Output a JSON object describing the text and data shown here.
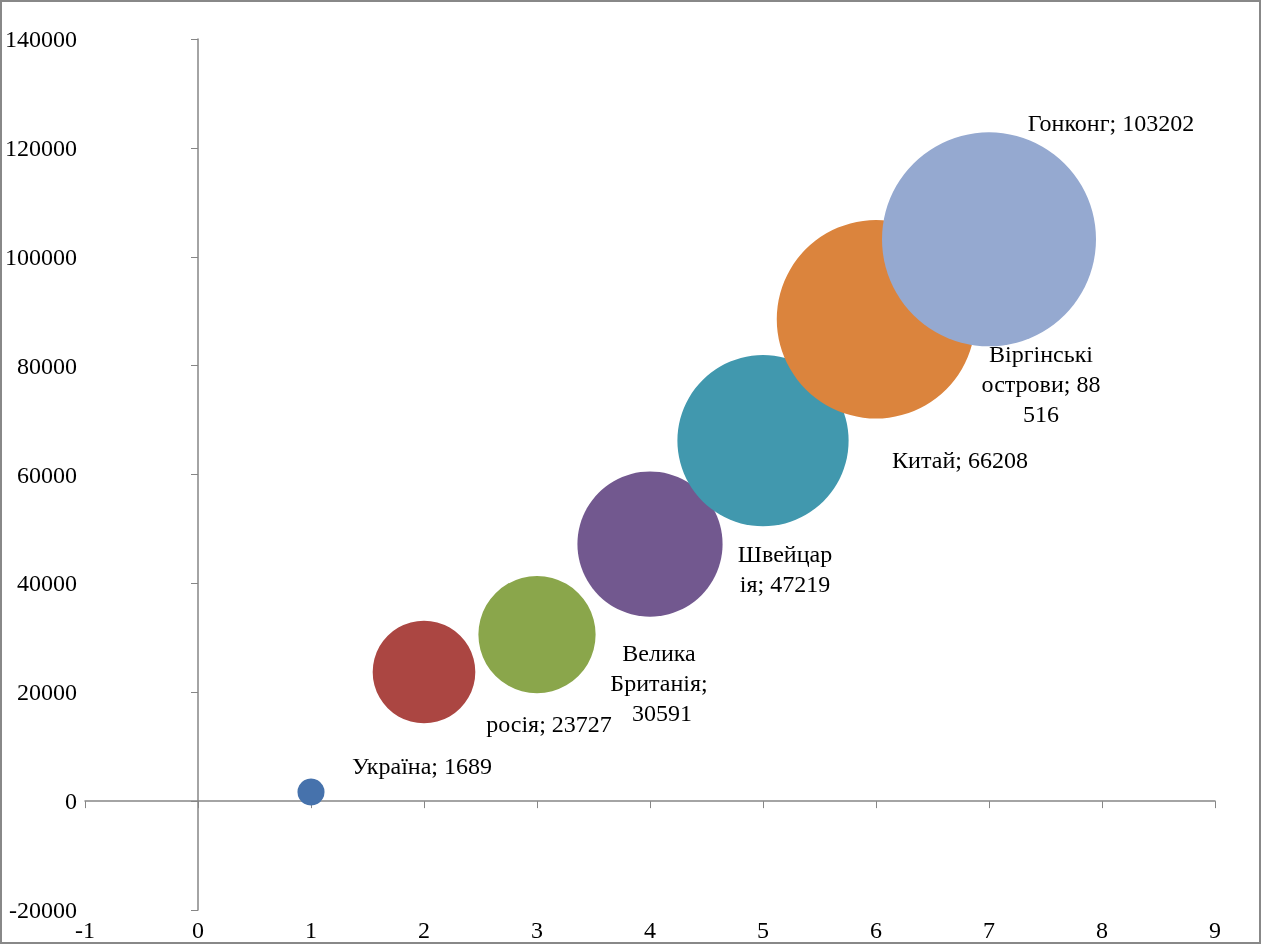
{
  "chart_data": {
    "type": "bubble",
    "x": [
      1,
      2,
      3,
      4,
      5,
      6,
      7
    ],
    "values": [
      1689,
      23727,
      30591,
      47219,
      66208,
      88516,
      103202
    ],
    "sizes": [
      0.016,
      0.23,
      0.3,
      0.46,
      0.64,
      0.86,
      1
    ],
    "colors": [
      "#4672ac",
      "#ab4642",
      "#8aa64b",
      "#72588f",
      "#4198ae",
      "#db843d",
      "#95a9d0"
    ],
    "value_labels": [
      "Україна; 1689",
      "росія; 23727",
      "Велика Британія; 30591",
      "Швейцарія; 47219",
      "Китай; 66208",
      "Віргінські острови; 88 516",
      "Гонконг; 103202"
    ],
    "xlim": [
      -1,
      9
    ],
    "xticks": [
      -1,
      0,
      1,
      2,
      3,
      4,
      5,
      6,
      7,
      8,
      9
    ],
    "ylim": [
      -20000,
      140000
    ],
    "yticks": [
      -20000,
      0,
      20000,
      40000,
      60000,
      80000,
      100000,
      120000,
      140000
    ],
    "marker": "circle"
  }
}
